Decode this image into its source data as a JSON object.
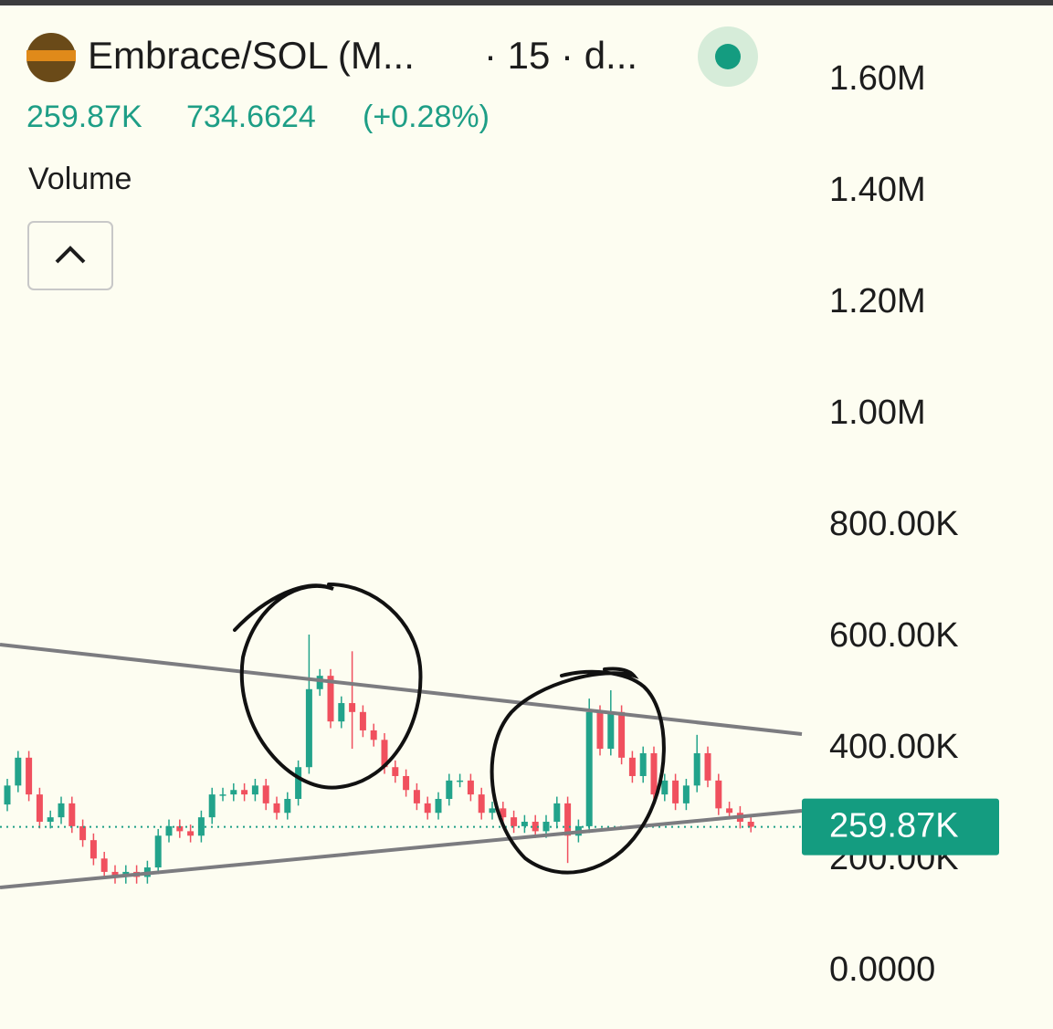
{
  "chart_data": {
    "type": "candlestick",
    "title": "Embrace/SOL (M...",
    "interval": "· 15 · d...",
    "header_volume": "259.87K",
    "header_price": "734.6624",
    "header_change": "(+0.28%)",
    "indicator": "Volume",
    "up_color": "#22a38b",
    "down_color": "#f0505e",
    "ylim": [
      -103000,
      1744000
    ],
    "yticks": [
      {
        "value": 0,
        "label": "0.0000"
      },
      {
        "value": 200000,
        "label": "200.00K"
      },
      {
        "value": 400000,
        "label": "400.00K"
      },
      {
        "value": 600000,
        "label": "600.00K"
      },
      {
        "value": 800000,
        "label": "800.00K"
      },
      {
        "value": 1000000,
        "label": "1.00M"
      },
      {
        "value": 1200000,
        "label": "1.20M"
      },
      {
        "value": 1400000,
        "label": "1.40M"
      },
      {
        "value": 1600000,
        "label": "1.60M"
      }
    ],
    "price_label": {
      "value": 259870,
      "label": "259.87K"
    },
    "open": [
      300000,
      334000,
      384000,
      318000,
      269000,
      277000,
      302000,
      261000,
      236000,
      203000,
      179000,
      170000,
      179000,
      170000,
      187000,
      244000,
      261000,
      252000,
      244000,
      277000,
      318000,
      318000,
      326000,
      318000,
      334000,
      302000,
      285000,
      310000,
      367000,
      507000,
      531000,
      449000,
      482000,
      466000,
      433000,
      416000,
      367000,
      351000,
      326000,
      302000,
      285000,
      310000,
      343000,
      343000,
      318000,
      285000,
      293000,
      277000,
      261000,
      269000,
      252000,
      269000,
      302000,
      244000,
      261000,
      466000,
      400000,
      466000,
      384000,
      351000,
      392000,
      318000,
      343000,
      302000,
      334000,
      392000,
      343000,
      293000,
      285000,
      269000
    ],
    "high": [
      346000,
      396000,
      396000,
      330000,
      289000,
      314000,
      314000,
      273000,
      248000,
      215000,
      191000,
      191000,
      191000,
      199000,
      256000,
      273000,
      273000,
      264000,
      289000,
      330000,
      330000,
      338000,
      338000,
      346000,
      346000,
      314000,
      322000,
      379000,
      605000,
      543000,
      543000,
      494000,
      575000,
      478000,
      445000,
      428000,
      379000,
      363000,
      338000,
      314000,
      322000,
      355000,
      355000,
      355000,
      330000,
      305000,
      305000,
      289000,
      281000,
      281000,
      281000,
      314000,
      314000,
      273000,
      490000,
      478000,
      505000,
      478000,
      396000,
      404000,
      404000,
      355000,
      355000,
      346000,
      425000,
      404000,
      355000,
      305000,
      297000,
      281000
    ],
    "low": [
      288000,
      322000,
      306000,
      257000,
      257000,
      265000,
      249000,
      224000,
      191000,
      167000,
      158000,
      158000,
      158000,
      158000,
      175000,
      232000,
      240000,
      232000,
      232000,
      265000,
      306000,
      306000,
      306000,
      306000,
      290000,
      273000,
      273000,
      298000,
      355000,
      495000,
      437000,
      437000,
      400000,
      421000,
      404000,
      355000,
      339000,
      314000,
      290000,
      273000,
      273000,
      298000,
      331000,
      306000,
      273000,
      273000,
      265000,
      249000,
      249000,
      240000,
      240000,
      257000,
      195000,
      232000,
      249000,
      388000,
      388000,
      372000,
      339000,
      339000,
      306000,
      306000,
      290000,
      290000,
      322000,
      331000,
      281000,
      273000,
      257000,
      250000
    ],
    "close": [
      334000,
      384000,
      318000,
      269000,
      277000,
      302000,
      261000,
      236000,
      203000,
      179000,
      170000,
      179000,
      170000,
      187000,
      244000,
      261000,
      252000,
      244000,
      277000,
      318000,
      318000,
      326000,
      318000,
      334000,
      302000,
      285000,
      310000,
      367000,
      507000,
      531000,
      449000,
      482000,
      466000,
      433000,
      416000,
      367000,
      351000,
      326000,
      302000,
      285000,
      310000,
      343000,
      343000,
      318000,
      285000,
      293000,
      277000,
      261000,
      269000,
      252000,
      269000,
      302000,
      244000,
      261000,
      466000,
      400000,
      466000,
      384000,
      351000,
      392000,
      318000,
      343000,
      302000,
      334000,
      392000,
      343000,
      293000,
      285000,
      269000,
      259870
    ]
  }
}
